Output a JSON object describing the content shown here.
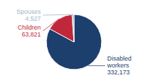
{
  "chart_data": {
    "type": "pie",
    "categories": [
      "Disabled\nworkers",
      "Children",
      "Spouses"
    ],
    "values": [
      332173,
      63821,
      4527
    ],
    "value_labels": [
      "332,173",
      "63,821",
      "4,527"
    ],
    "colors": [
      "#1c3f6e",
      "#c0273a",
      "#9fb3c4"
    ],
    "data_labels": true
  }
}
